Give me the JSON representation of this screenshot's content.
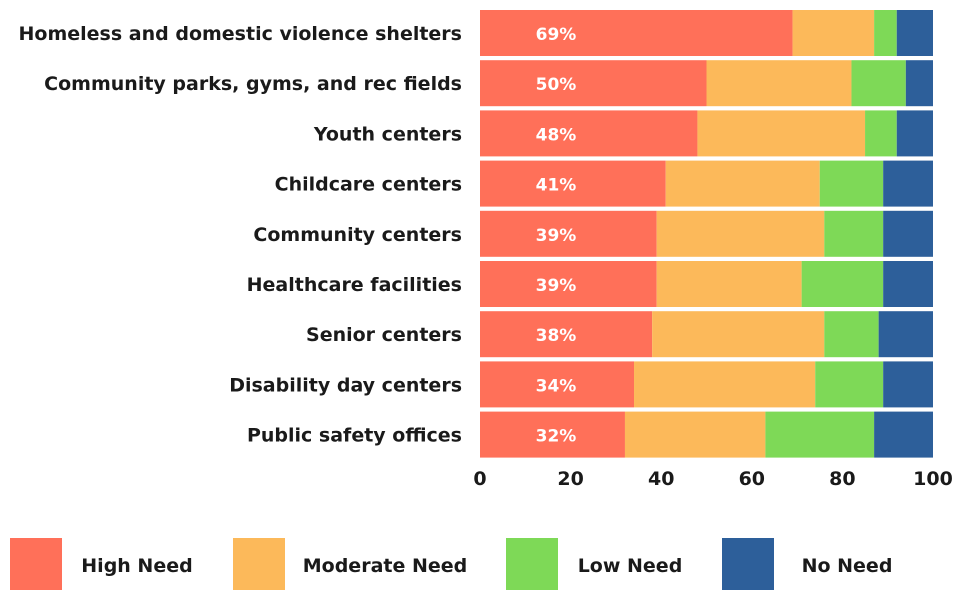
{
  "chart_data": {
    "type": "bar",
    "orientation": "horizontal",
    "stacked": true,
    "categories": [
      "Homeless and domestic violence shelters",
      "Community parks, gyms, and rec fields",
      "Youth centers",
      "Childcare centers",
      "Community centers",
      "Healthcare facilities",
      "Senior centers",
      "Disability day centers",
      "Public safety offices"
    ],
    "series": [
      {
        "name": "High Need",
        "color": "#ff7059",
        "values": [
          69,
          50,
          48,
          41,
          39,
          39,
          38,
          34,
          32
        ]
      },
      {
        "name": "Moderate Need",
        "color": "#fcb95a",
        "values": [
          18,
          32,
          37,
          34,
          37,
          32,
          38,
          40,
          31
        ]
      },
      {
        "name": "Low Need",
        "color": "#7ed957",
        "values": [
          5,
          12,
          7,
          14,
          13,
          18,
          12,
          15,
          24
        ]
      },
      {
        "name": "No Need",
        "color": "#2d5f9a",
        "values": [
          8,
          6,
          8,
          11,
          11,
          11,
          12,
          11,
          13
        ]
      }
    ],
    "data_labels": [
      "69%",
      "50%",
      "48%",
      "41%",
      "39%",
      "39%",
      "38%",
      "34%",
      "32%"
    ],
    "x_ticks": [
      "0",
      "20",
      "40",
      "60",
      "80",
      "100"
    ],
    "xlim": [
      0,
      100
    ],
    "grid": false,
    "legend_position": "bottom",
    "title": "",
    "xlabel": "",
    "ylabel": ""
  }
}
